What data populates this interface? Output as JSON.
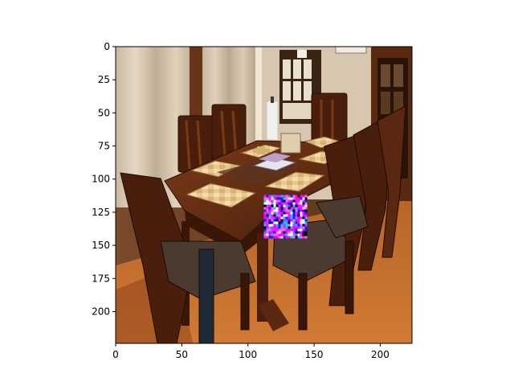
{
  "figure": {
    "kind": "image-with-axes",
    "colors": {
      "axis": "#000000",
      "background": "#ffffff",
      "patch_magenta": "#ff00ff",
      "patch_blue": "#1a1aff",
      "patch_white": "#ffffff"
    },
    "axes": {
      "xlim": [
        0,
        224
      ],
      "ylim": [
        224,
        0
      ],
      "x_ticks": [
        0,
        50,
        100,
        150,
        200
      ],
      "y_ticks": [
        0,
        25,
        50,
        75,
        100,
        125,
        150,
        175,
        200
      ]
    },
    "scene_description": "dining room with a wooden table, eight chairs, curtains, window and door",
    "overlay": {
      "type": "pixel-noise-patch",
      "x_range": [
        112,
        143
      ],
      "y_range": [
        112,
        143
      ]
    }
  }
}
